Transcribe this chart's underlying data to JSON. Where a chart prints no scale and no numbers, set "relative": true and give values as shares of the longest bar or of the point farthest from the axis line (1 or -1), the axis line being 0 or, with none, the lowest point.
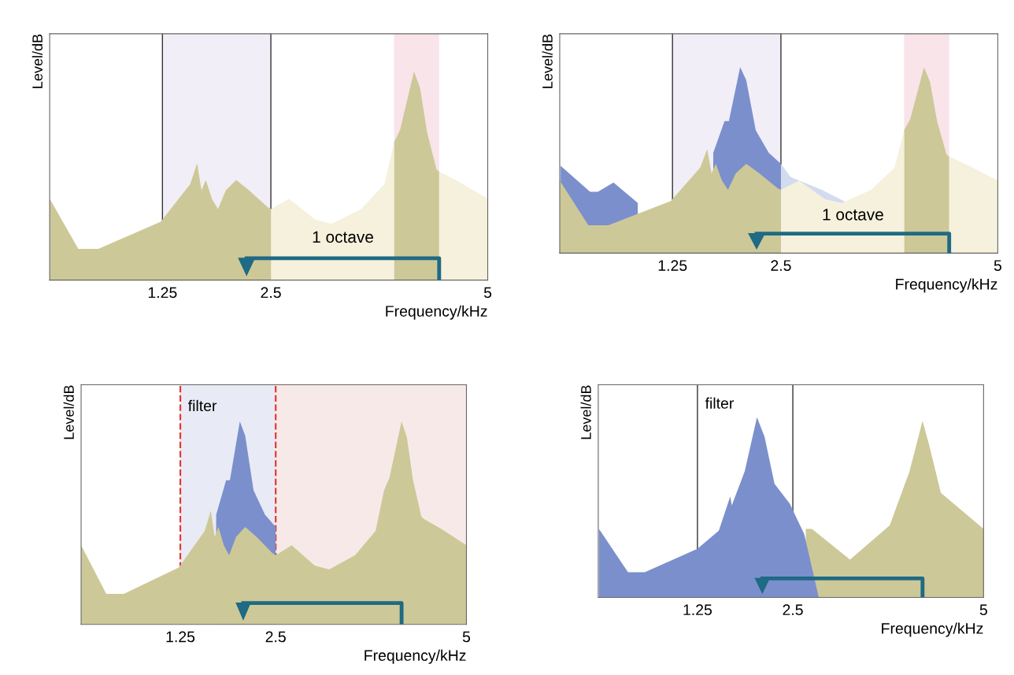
{
  "chart_data": [
    {
      "type": "area",
      "relative": true,
      "xlabel": "Frequency/kHz",
      "ylabel": "Level/dB",
      "xlim": [
        -0.05,
        5
      ],
      "xticks": [
        1.25,
        2.5,
        5
      ],
      "grid": false,
      "legend": false,
      "bands": [
        {
          "axis": "x",
          "from": 1.25,
          "to": 2.5,
          "color": "#f1eef8"
        },
        {
          "axis": "x",
          "from": 3.92,
          "to": 4.44,
          "color": "#f9e4ea"
        }
      ],
      "ref_lines": [
        {
          "axis": "x",
          "value": 1.25,
          "color": "#333333",
          "line_style": "solid"
        },
        {
          "axis": "x",
          "value": 2.5,
          "color": "#333333",
          "line_style": "solid"
        }
      ],
      "annotations": [
        "1 octave"
      ],
      "series": [
        {
          "color": "#cdc897",
          "x": [
            -0.05,
            0.28,
            0.51,
            1.23,
            1.57,
            1.65,
            1.7,
            1.75,
            1.82,
            1.89,
            1.98,
            2.1,
            2.25,
            2.46,
            2.5
          ],
          "values": [
            0.39,
            0.15,
            0.15,
            0.28,
            0.46,
            0.56,
            0.43,
            0.48,
            0.39,
            0.34,
            0.43,
            0.48,
            0.43,
            0.35,
            0.34
          ]
        },
        {
          "color": "#cdc897",
          "x": [
            3.92,
            3.99,
            4.15,
            4.22,
            4.3,
            4.41,
            4.44
          ],
          "values": [
            0.66,
            0.72,
            1.0,
            0.92,
            0.71,
            0.53,
            0.52
          ]
        },
        {
          "color": "#f5f1dc",
          "x": [
            2.5,
            2.71,
            3.01,
            3.2,
            3.54,
            3.81,
            3.92
          ],
          "values": [
            0.34,
            0.39,
            0.29,
            0.27,
            0.34,
            0.46,
            0.66
          ]
        },
        {
          "color": "#f5f1dc",
          "x": [
            4.44,
            4.67,
            5.0
          ],
          "values": [
            0.52,
            0.47,
            0.39
          ]
        }
      ]
    },
    {
      "type": "area",
      "relative": true,
      "xlabel": "Frequency/kHz",
      "ylabel": "Level/dB",
      "xlim": [
        -0.05,
        5
      ],
      "xticks": [
        1.25,
        2.5,
        5
      ],
      "grid": false,
      "legend": false,
      "bands": [
        {
          "axis": "x",
          "from": 1.25,
          "to": 2.5,
          "color": "#f1eef8"
        },
        {
          "axis": "x",
          "from": 3.92,
          "to": 4.44,
          "color": "#f9e4ea"
        }
      ],
      "ref_lines": [
        {
          "axis": "x",
          "value": 1.25,
          "color": "#333333",
          "line_style": "solid"
        },
        {
          "axis": "x",
          "value": 2.5,
          "color": "#333333",
          "line_style": "solid"
        }
      ],
      "annotations": [
        "1 octave"
      ],
      "series": [
        {
          "color": "#7b8fcc",
          "x": [
            -0.04,
            0.3,
            0.39,
            0.57,
            0.85
          ],
          "values": [
            0.47,
            0.33,
            0.33,
            0.38,
            0.27
          ]
        },
        {
          "color": "#7b8fcc",
          "x": [
            1.72,
            1.85,
            1.9,
            2.03,
            2.1,
            2.21,
            2.36,
            2.5
          ],
          "values": [
            0.54,
            0.71,
            0.71,
            1.0,
            0.93,
            0.66,
            0.54,
            0.48
          ]
        },
        {
          "color": "#d3dbf0",
          "x": [
            2.5,
            2.61,
            2.97,
            3.27
          ],
          "values": [
            0.48,
            0.41,
            0.34,
            0.27
          ]
        },
        {
          "color": "#cdc897",
          "x": [
            -0.05,
            0.28,
            0.51,
            1.23,
            1.57,
            1.65,
            1.7,
            1.75,
            1.82,
            1.89,
            1.98,
            2.1,
            2.25,
            2.46,
            2.5
          ],
          "values": [
            0.39,
            0.15,
            0.15,
            0.28,
            0.46,
            0.56,
            0.43,
            0.48,
            0.39,
            0.34,
            0.43,
            0.48,
            0.43,
            0.35,
            0.34
          ]
        },
        {
          "color": "#cdc897",
          "x": [
            3.92,
            3.99,
            4.15,
            4.22,
            4.3,
            4.41,
            4.44
          ],
          "values": [
            0.66,
            0.72,
            1.0,
            0.92,
            0.71,
            0.53,
            0.52
          ]
        },
        {
          "color": "#f5f1dc",
          "x": [
            2.5,
            2.71,
            3.01,
            3.2,
            3.54,
            3.81,
            3.92
          ],
          "values": [
            0.34,
            0.39,
            0.29,
            0.27,
            0.34,
            0.46,
            0.66
          ]
        },
        {
          "color": "#f5f1dc",
          "x": [
            4.44,
            4.67,
            5.0
          ],
          "values": [
            0.52,
            0.47,
            0.39
          ]
        }
      ]
    },
    {
      "type": "area",
      "relative": true,
      "xlabel": "Frequency/kHz",
      "ylabel": "Level/dB",
      "xlim": [
        -0.05,
        5
      ],
      "xticks": [
        1.25,
        2.5,
        5
      ],
      "grid": false,
      "legend": false,
      "bands": [
        {
          "axis": "x",
          "from": 1.25,
          "to": 2.5,
          "color": "#e8ebf5"
        },
        {
          "axis": "x",
          "from": 2.5,
          "to": 5,
          "color": "#f8e9e9"
        }
      ],
      "ref_lines": [
        {
          "axis": "x",
          "value": 1.25,
          "color": "#e53935",
          "line_style": "dashed",
          "label": "filter"
        },
        {
          "axis": "x",
          "value": 2.5,
          "color": "#e53935",
          "line_style": "dashed"
        }
      ],
      "series": [
        {
          "color": "#7b8fcc",
          "x": [
            1.72,
            1.85,
            1.9,
            2.03,
            2.1,
            2.21,
            2.36,
            2.5
          ],
          "values": [
            0.54,
            0.71,
            0.71,
            1.0,
            0.93,
            0.66,
            0.54,
            0.48
          ]
        },
        {
          "color": "#cdc897",
          "x": [
            -0.05,
            0.28,
            0.51,
            1.23,
            1.57,
            1.65,
            1.7,
            1.75,
            1.82,
            1.89,
            1.98,
            2.1,
            2.25,
            2.46,
            2.5,
            2.71,
            3.01,
            3.2,
            3.54,
            3.81,
            3.92,
            3.99,
            4.15,
            4.22,
            4.3,
            4.41,
            4.44,
            4.67,
            5.0
          ],
          "values": [
            0.39,
            0.15,
            0.15,
            0.28,
            0.46,
            0.56,
            0.43,
            0.48,
            0.39,
            0.34,
            0.43,
            0.48,
            0.43,
            0.35,
            0.34,
            0.39,
            0.29,
            0.27,
            0.34,
            0.46,
            0.66,
            0.72,
            1.0,
            0.92,
            0.71,
            0.53,
            0.52,
            0.47,
            0.39
          ]
        }
      ]
    },
    {
      "type": "area",
      "relative": true,
      "xlabel": "Frequency/kHz",
      "ylabel": "Level/dB",
      "xlim": [
        -0.05,
        5
      ],
      "xticks": [
        1.25,
        2.5,
        5
      ],
      "grid": false,
      "legend": false,
      "ref_lines": [
        {
          "axis": "x",
          "value": 1.25,
          "color": "#333333",
          "line_style": "solid",
          "label": "filter"
        },
        {
          "axis": "x",
          "value": 2.5,
          "color": "#333333",
          "line_style": "solid"
        }
      ],
      "series": [
        {
          "color": "#cdc897",
          "x": [
            2.67,
            2.75,
            3.25,
            3.77,
            4.03,
            4.2,
            4.29,
            4.44,
            5.0
          ],
          "values": [
            0.38,
            0.38,
            0.21,
            0.4,
            0.7,
            0.98,
            0.84,
            0.58,
            0.38
          ]
        },
        {
          "color": "#7b8fcc",
          "x": [
            -0.04,
            0.34,
            0.56,
            1.25,
            1.53,
            1.68,
            1.7,
            1.87,
            2.03,
            2.13,
            2.26,
            2.46,
            2.65,
            2.84
          ],
          "values": [
            0.38,
            0.14,
            0.14,
            0.27,
            0.37,
            0.56,
            0.51,
            0.7,
            1.0,
            0.89,
            0.63,
            0.52,
            0.35,
            0.0
          ]
        }
      ]
    }
  ]
}
